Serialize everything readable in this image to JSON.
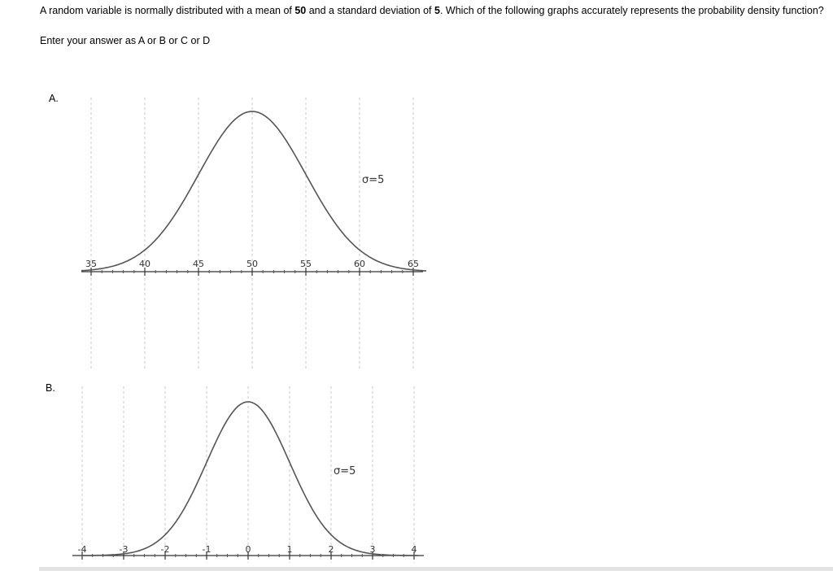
{
  "question": {
    "part1": "A random variable is normally distributed with a mean of ",
    "mean": "50",
    "part2": " and a standard deviation of ",
    "sd": "5",
    "part3": ". Which of the following graphs accurately represents the probability density function?"
  },
  "instruction": "Enter your answer as A or B or C or D",
  "options": [
    {
      "label": "A.",
      "chart_data": {
        "type": "line",
        "x_ticks": [
          "35",
          "40",
          "45",
          "50",
          "55",
          "60",
          "65"
        ],
        "mean_index": 3,
        "annotation": "σ=5"
      }
    },
    {
      "label": "B.",
      "chart_data": {
        "type": "line",
        "x_ticks": [
          "-4",
          "-3",
          "-2",
          "-1",
          "0",
          "1",
          "2",
          "3",
          "4"
        ],
        "mean_index": 4,
        "annotation": "σ=5"
      }
    }
  ]
}
